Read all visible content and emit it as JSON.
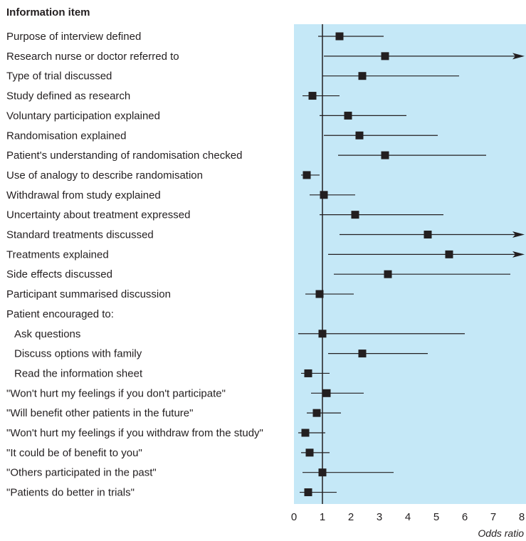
{
  "chart_data": {
    "type": "forest",
    "header": "Information item",
    "xlabel": "Odds ratio",
    "xlim": [
      0,
      8
    ],
    "xticks": [
      "0",
      "1",
      "2",
      "3",
      "4",
      "5",
      "6",
      "7",
      "8"
    ],
    "reference_line": 1,
    "colors": {
      "panel": "#c5e8f7",
      "marker": "#231f20",
      "line": "#231f20"
    },
    "items": [
      {
        "label": "Purpose of interview defined",
        "or": 1.6,
        "lo": 0.85,
        "hi": 3.15
      },
      {
        "label": "Research nurse or doctor referred to",
        "or": 3.2,
        "lo": 1.05,
        "hi": 8.0,
        "hi_arrow": true
      },
      {
        "label": "Type of trial discussed",
        "or": 2.4,
        "lo": 1.0,
        "hi": 5.8
      },
      {
        "label": "Study defined as research",
        "or": 0.65,
        "lo": 0.3,
        "hi": 1.6
      },
      {
        "label": "Voluntary participation explained",
        "or": 1.9,
        "lo": 0.9,
        "hi": 3.95
      },
      {
        "label": "Randomisation explained",
        "or": 2.3,
        "lo": 1.05,
        "hi": 5.05
      },
      {
        "label": "Patient's understanding of randomisation checked",
        "or": 3.2,
        "lo": 1.55,
        "hi": 6.75
      },
      {
        "label": "Use of analogy to describe randomisation",
        "or": 0.45,
        "lo": 0.25,
        "hi": 0.9
      },
      {
        "label": "Withdrawal from study explained",
        "or": 1.05,
        "lo": 0.55,
        "hi": 2.15
      },
      {
        "label": "Uncertainty about treatment expressed",
        "or": 2.15,
        "lo": 0.9,
        "hi": 5.25
      },
      {
        "label": "Standard treatments discussed",
        "or": 4.7,
        "lo": 1.6,
        "hi": 8.0,
        "hi_arrow": true
      },
      {
        "label": "Treatments explained",
        "or": 5.45,
        "lo": 1.2,
        "hi": 8.0,
        "hi_arrow": true
      },
      {
        "label": "Side effects discussed",
        "or": 3.3,
        "lo": 1.4,
        "hi": 7.6
      },
      {
        "label": "Participant summarised discussion",
        "or": 0.9,
        "lo": 0.4,
        "hi": 2.1
      },
      {
        "label": "Patient encouraged to:",
        "is_group": true
      },
      {
        "label": "Ask questions",
        "or": 1.0,
        "lo": 0.15,
        "hi": 6.0,
        "indent": true
      },
      {
        "label": "Discuss options with family",
        "or": 2.4,
        "lo": 1.2,
        "hi": 4.7,
        "indent": true
      },
      {
        "label": "Read the information sheet",
        "or": 0.5,
        "lo": 0.25,
        "hi": 1.25,
        "indent": true
      },
      {
        "label": "\"Won't hurt my feelings if you don't participate\"",
        "or": 1.15,
        "lo": 0.6,
        "hi": 2.45
      },
      {
        "label": "\"Will benefit other patients in the future\"",
        "or": 0.8,
        "lo": 0.45,
        "hi": 1.65
      },
      {
        "label": "\"Won't hurt my feelings if you withdraw from the study\"",
        "or": 0.4,
        "lo": 0.15,
        "hi": 1.1
      },
      {
        "label": "\"It could be of benefit to you\"",
        "or": 0.55,
        "lo": 0.25,
        "hi": 1.25
      },
      {
        "label": "\"Others participated in the past\"",
        "or": 1.0,
        "lo": 0.3,
        "hi": 3.5
      },
      {
        "label": "\"Patients do better in trials\"",
        "or": 0.5,
        "lo": 0.2,
        "hi": 1.5
      }
    ]
  }
}
